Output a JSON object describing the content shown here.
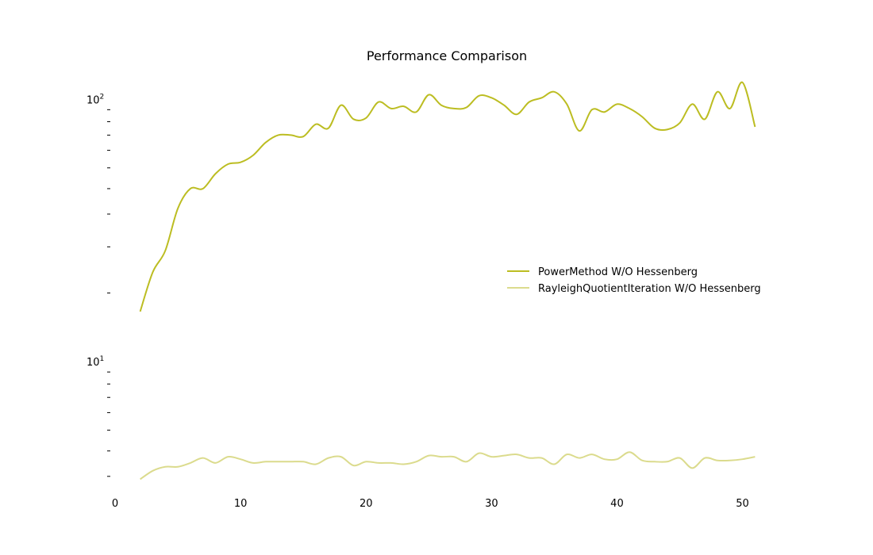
{
  "chart_data": {
    "type": "line",
    "title": "Performance Comparison",
    "xlabel": "",
    "ylabel": "",
    "y_scale": "log",
    "xlim": [
      0,
      53
    ],
    "ylim": [
      3.5,
      140
    ],
    "grid": false,
    "legend_position": "center-right",
    "x_ticks": [
      0,
      10,
      20,
      30,
      40,
      50
    ],
    "y_major_ticks": [
      {
        "value": 10,
        "base": "10",
        "exp": "1"
      },
      {
        "value": 100,
        "base": "10",
        "exp": "2"
      }
    ],
    "y_minor_ticks": [
      4,
      5,
      6,
      7,
      8,
      9,
      20,
      30,
      40,
      50,
      60,
      70,
      80,
      90
    ],
    "series": [
      {
        "name": "PowerMethod W/O Hessenberg",
        "color": "#bcbd22",
        "opacity": 1.0,
        "x": [
          2,
          3,
          4,
          5,
          6,
          7,
          8,
          9,
          10,
          11,
          12,
          13,
          14,
          15,
          16,
          17,
          18,
          19,
          20,
          21,
          22,
          23,
          24,
          25,
          26,
          27,
          28,
          29,
          30,
          31,
          32,
          33,
          34,
          35,
          36,
          37,
          38,
          39,
          40,
          41,
          42,
          43,
          44,
          45,
          46,
          47,
          48,
          49,
          50,
          51
        ],
        "y": [
          17,
          24,
          29,
          42,
          50,
          50,
          57,
          62,
          63,
          67,
          75,
          80,
          80,
          79,
          88,
          85,
          104,
          92,
          93,
          107,
          101,
          103,
          98,
          114,
          104,
          101,
          102,
          113,
          111,
          104,
          96,
          107,
          111,
          117,
          105,
          83,
          100,
          98,
          105,
          101,
          94,
          85,
          84,
          89,
          105,
          92,
          117,
          101,
          127,
          86
        ]
      },
      {
        "name": "RayleighQuotientIteration W/O Hessenberg",
        "color": "#dbdb8d",
        "opacity": 1.0,
        "x": [
          2,
          3,
          4,
          5,
          6,
          7,
          8,
          9,
          10,
          11,
          12,
          13,
          14,
          15,
          16,
          17,
          18,
          19,
          20,
          21,
          22,
          23,
          24,
          25,
          26,
          27,
          28,
          29,
          30,
          31,
          32,
          33,
          34,
          35,
          36,
          37,
          38,
          39,
          40,
          41,
          42,
          43,
          44,
          45,
          46,
          47,
          48,
          49,
          50,
          51
        ],
        "y": [
          3.9,
          4.2,
          4.35,
          4.35,
          4.5,
          4.7,
          4.5,
          4.75,
          4.65,
          4.5,
          4.55,
          4.55,
          4.55,
          4.55,
          4.45,
          4.7,
          4.75,
          4.4,
          4.55,
          4.5,
          4.5,
          4.45,
          4.55,
          4.8,
          4.75,
          4.75,
          4.55,
          4.9,
          4.75,
          4.8,
          4.85,
          4.7,
          4.7,
          4.45,
          4.85,
          4.7,
          4.85,
          4.65,
          4.65,
          4.95,
          4.6,
          4.55,
          4.55,
          4.7,
          4.3,
          4.7,
          4.6,
          4.6,
          4.65,
          4.75
        ]
      }
    ]
  }
}
